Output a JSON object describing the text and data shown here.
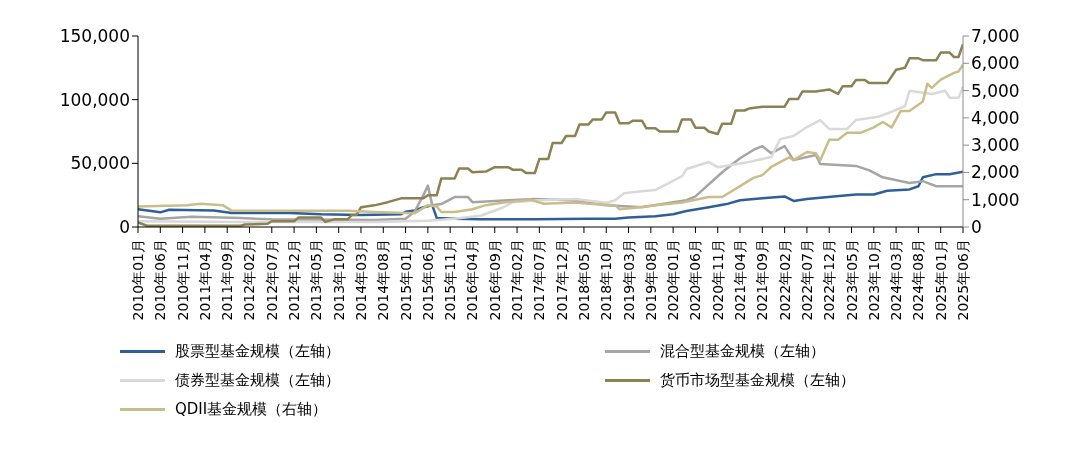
{
  "chart_data": {
    "type": "line",
    "legend": "bottom",
    "xlim": [
      "2010-01",
      "2025-06"
    ],
    "xticks": [
      {
        "value": "2010-01",
        "label": "2010年01月"
      },
      {
        "value": "2010-06",
        "label": "2010年06月"
      },
      {
        "value": "2010-11",
        "label": "2010年11月"
      },
      {
        "value": "2011-04",
        "label": "2011年04月"
      },
      {
        "value": "2011-09",
        "label": "2011年09月"
      },
      {
        "value": "2012-02",
        "label": "2012年02月"
      },
      {
        "value": "2012-07",
        "label": "2012年07月"
      },
      {
        "value": "2012-12",
        "label": "2012年12月"
      },
      {
        "value": "2013-05",
        "label": "2013年05月"
      },
      {
        "value": "2013-10",
        "label": "2013年10月"
      },
      {
        "value": "2014-03",
        "label": "2014年03月"
      },
      {
        "value": "2014-08",
        "label": "2014年08月"
      },
      {
        "value": "2015-01",
        "label": "2015年01月"
      },
      {
        "value": "2015-06",
        "label": "2015年06月"
      },
      {
        "value": "2015-11",
        "label": "2015年11月"
      },
      {
        "value": "2016-04",
        "label": "2016年04月"
      },
      {
        "value": "2016-09",
        "label": "2016年09月"
      },
      {
        "value": "2017-02",
        "label": "2017年02月"
      },
      {
        "value": "2017-07",
        "label": "2017年07月"
      },
      {
        "value": "2017-12",
        "label": "2017年12月"
      },
      {
        "value": "2018-05",
        "label": "2018年05月"
      },
      {
        "value": "2018-10",
        "label": "2018年10月"
      },
      {
        "value": "2019-03",
        "label": "2019年03月"
      },
      {
        "value": "2019-08",
        "label": "2019年08月"
      },
      {
        "value": "2020-01",
        "label": "2020年01月"
      },
      {
        "value": "2020-06",
        "label": "2020年06月"
      },
      {
        "value": "2020-11",
        "label": "2020年11月"
      },
      {
        "value": "2021-04",
        "label": "2021年04月"
      },
      {
        "value": "2021-09",
        "label": "2021年09月"
      },
      {
        "value": "2022-02",
        "label": "2022年02月"
      },
      {
        "value": "2022-07",
        "label": "2022年07月"
      },
      {
        "value": "2022-12",
        "label": "2022年12月"
      },
      {
        "value": "2023-05",
        "label": "2023年05月"
      },
      {
        "value": "2023-10",
        "label": "2023年10月"
      },
      {
        "value": "2024-03",
        "label": "2024年03月"
      },
      {
        "value": "2024-08",
        "label": "2024年08月"
      },
      {
        "value": "2025-01",
        "label": "2025年01月"
      },
      {
        "value": "2025-06",
        "label": "2025年06月"
      }
    ],
    "ylim": [
      0,
      150000
    ],
    "yticks": [
      0,
      {
        "value": 50000,
        "label": "50,000"
      },
      {
        "value": 100000,
        "label": "100,000"
      },
      {
        "value": 150000,
        "label": "150,000"
      }
    ],
    "y2lim": [
      0,
      7000
    ],
    "y2ticks": [
      0,
      {
        "value": 1000,
        "label": "1,000"
      },
      {
        "value": 2000,
        "label": "2,000"
      },
      {
        "value": 3000,
        "label": "3,000"
      },
      {
        "value": 4000,
        "label": "4,000"
      },
      {
        "value": 5000,
        "label": "5,000"
      },
      {
        "value": 6000,
        "label": "6,000"
      },
      {
        "value": 7000,
        "label": "7,000"
      }
    ],
    "series": [
      {
        "name": "股票型基金规模（左轴）",
        "color": "#2f5f98",
        "x": [
          "2010-01",
          "2010-06",
          "2010-08",
          "2011-06",
          "2011-10",
          "2012-11",
          "2013-06",
          "2014-03",
          "2014-12",
          "2015-01",
          "2015-03",
          "2015-05",
          "2015-07",
          "2015-08",
          "2015-12",
          "2016-06",
          "2017-06",
          "2018-06",
          "2018-12",
          "2019-03",
          "2019-09",
          "2020-01",
          "2020-04",
          "2020-09",
          "2021-01",
          "2021-04",
          "2021-09",
          "2022-02",
          "2022-04",
          "2022-07",
          "2023-01",
          "2023-06",
          "2023-10",
          "2024-01",
          "2024-06",
          "2024-08",
          "2024-09",
          "2024-12",
          "2025-03",
          "2025-06"
        ],
        "values": [
          14000,
          11500,
          13500,
          13000,
          11000,
          11000,
          10000,
          9500,
          10000,
          12000,
          13000,
          15500,
          17000,
          7000,
          6500,
          6000,
          6000,
          6500,
          6500,
          7500,
          8500,
          10000,
          12500,
          15500,
          18000,
          21000,
          22500,
          24000,
          20500,
          22000,
          24000,
          25500,
          25500,
          28500,
          29500,
          32000,
          39000,
          41500,
          41500,
          43500
        ]
      },
      {
        "name": "混合型基金规模（左轴）",
        "color": "#a5a5a5",
        "x": [
          "2010-01",
          "2010-06",
          "2011-01",
          "2011-12",
          "2012-07",
          "2014-06",
          "2015-01",
          "2015-03",
          "2015-05",
          "2015-06",
          "2015-07",
          "2015-09",
          "2015-12",
          "2016-03",
          "2016-04",
          "2016-12",
          "2017-06",
          "2018-02",
          "2018-10",
          "2019-06",
          "2020-01",
          "2020-04",
          "2020-06",
          "2020-12",
          "2021-04",
          "2021-07",
          "2021-09",
          "2021-11",
          "2022-02",
          "2022-04",
          "2022-09",
          "2022-10",
          "2023-06",
          "2023-09",
          "2023-12",
          "2024-06",
          "2024-09",
          "2024-12",
          "2025-06"
        ],
        "values": [
          8500,
          6500,
          8000,
          7000,
          6000,
          5500,
          6500,
          12000,
          25000,
          32500,
          17000,
          18000,
          23500,
          23500,
          19500,
          21000,
          22000,
          21000,
          17000,
          15500,
          19500,
          21000,
          24000,
          43000,
          54000,
          60500,
          63500,
          58000,
          63500,
          52500,
          56500,
          49500,
          48000,
          44500,
          39000,
          34500,
          36000,
          32000,
          32000
        ]
      },
      {
        "name": "债券型基金规模（左轴）",
        "color": "#d9d9d9",
        "x": [
          "2010-01",
          "2012-01",
          "2014-06",
          "2015-06",
          "2015-12",
          "2016-06",
          "2016-11",
          "2017-01",
          "2017-07",
          "2018-03",
          "2018-10",
          "2018-12",
          "2019-02",
          "2019-06",
          "2019-09",
          "2019-12",
          "2020-03",
          "2020-04",
          "2020-09",
          "2020-11",
          "2021-06",
          "2021-11",
          "2022-01",
          "2022-04",
          "2022-07",
          "2022-10",
          "2022-12",
          "2023-04",
          "2023-06",
          "2023-11",
          "2024-02",
          "2024-05",
          "2024-06",
          "2024-11",
          "2025-02",
          "2025-03",
          "2025-05",
          "2025-06"
        ],
        "values": [
          4500,
          4000,
          4000,
          5000,
          6500,
          9000,
          15500,
          19500,
          21000,
          22000,
          19000,
          21000,
          26500,
          28000,
          29000,
          34500,
          40000,
          45500,
          51000,
          47000,
          51000,
          55000,
          69000,
          71500,
          78500,
          84000,
          77000,
          77000,
          84000,
          86500,
          90500,
          95000,
          107000,
          104500,
          107000,
          101500,
          101500,
          110000
        ]
      },
      {
        "name": "货币市场型基金规模（左轴）",
        "color": "#8c8152",
        "x": [
          "2010-01",
          "2010-03",
          "2011-12",
          "2012-01",
          "2012-06",
          "2012-07",
          "2012-12",
          "2013-01",
          "2013-06",
          "2013-07",
          "2013-09",
          "2013-12",
          "2014-01",
          "2014-02",
          "2014-03",
          "2014-06",
          "2014-09",
          "2014-12",
          "2015-05",
          "2015-06",
          "2015-08",
          "2015-09",
          "2015-12",
          "2016-01",
          "2016-03",
          "2016-04",
          "2016-07",
          "2016-09",
          "2016-12",
          "2017-01",
          "2017-03",
          "2017-04",
          "2017-06",
          "2017-07",
          "2017-09",
          "2017-10",
          "2017-12",
          "2018-01",
          "2018-03",
          "2018-04",
          "2018-06",
          "2018-07",
          "2018-09",
          "2018-10",
          "2018-12",
          "2019-01",
          "2019-03",
          "2019-04",
          "2019-06",
          "2019-07",
          "2019-09",
          "2019-10",
          "2020-02",
          "2020-03",
          "2020-05",
          "2020-06",
          "2020-08",
          "2020-09",
          "2020-11",
          "2020-12",
          "2021-02",
          "2021-03",
          "2021-05",
          "2021-06",
          "2021-09",
          "2022-02",
          "2022-03",
          "2022-05",
          "2022-06",
          "2022-09",
          "2022-12",
          "2023-02",
          "2023-03",
          "2023-05",
          "2023-06",
          "2023-08",
          "2023-09",
          "2024-01",
          "2024-03",
          "2024-05",
          "2024-06",
          "2024-08",
          "2024-09",
          "2024-12",
          "2025-01",
          "2025-03",
          "2025-04",
          "2025-05",
          "2025-06"
        ],
        "values": [
          3500,
          1000,
          1000,
          2000,
          2500,
          4500,
          4500,
          7500,
          7500,
          4000,
          6000,
          6000,
          9500,
          9500,
          15500,
          17000,
          19500,
          22500,
          22500,
          25000,
          25000,
          38000,
          38000,
          46000,
          46000,
          43000,
          43500,
          47000,
          47000,
          45000,
          45000,
          42500,
          42500,
          53500,
          53500,
          66000,
          66000,
          71500,
          71500,
          80500,
          80500,
          84500,
          84500,
          90000,
          90000,
          81500,
          81500,
          83500,
          83500,
          77500,
          77500,
          75000,
          75000,
          84500,
          84500,
          78000,
          78000,
          75000,
          73000,
          81000,
          81000,
          91500,
          91500,
          93000,
          94500,
          94500,
          100500,
          100500,
          106500,
          106500,
          108000,
          104500,
          110500,
          110500,
          115500,
          115500,
          113000,
          113000,
          123500,
          125000,
          132500,
          132500,
          131000,
          131000,
          137000,
          137000,
          133500,
          133500,
          143500
        ]
      },
      {
        "name": "QDII基金规模（右轴）",
        "color": "#c9bd8a",
        "axis": "y2",
        "x": [
          "2010-01",
          "2010-12",
          "2011-03",
          "2011-08",
          "2011-10",
          "2013-12",
          "2014-06",
          "2015-03",
          "2015-06",
          "2015-08",
          "2015-09",
          "2015-12",
          "2016-04",
          "2016-07",
          "2016-11",
          "2017-05",
          "2017-08",
          "2018-03",
          "2018-06",
          "2018-12",
          "2019-01",
          "2019-04",
          "2019-09",
          "2020-03",
          "2020-09",
          "2020-12",
          "2021-04",
          "2021-07",
          "2021-09",
          "2021-11",
          "2022-03",
          "2022-04",
          "2022-07",
          "2022-09",
          "2022-10",
          "2022-12",
          "2023-02",
          "2023-04",
          "2023-07",
          "2023-10",
          "2023-12",
          "2024-02",
          "2024-04",
          "2024-06",
          "2024-09",
          "2024-10",
          "2024-11",
          "2025-01",
          "2025-04",
          "2025-05",
          "2025-06"
        ],
        "values": [
          750,
          800,
          850,
          800,
          600,
          600,
          550,
          500,
          800,
          750,
          550,
          550,
          650,
          800,
          900,
          1000,
          850,
          900,
          850,
          800,
          650,
          700,
          800,
          900,
          1100,
          1100,
          1500,
          1800,
          1900,
          2200,
          2550,
          2450,
          2750,
          2700,
          2450,
          3200,
          3200,
          3450,
          3450,
          3650,
          3850,
          3650,
          4250,
          4250,
          4600,
          5250,
          5100,
          5400,
          5650,
          5700,
          5950
        ]
      }
    ]
  }
}
